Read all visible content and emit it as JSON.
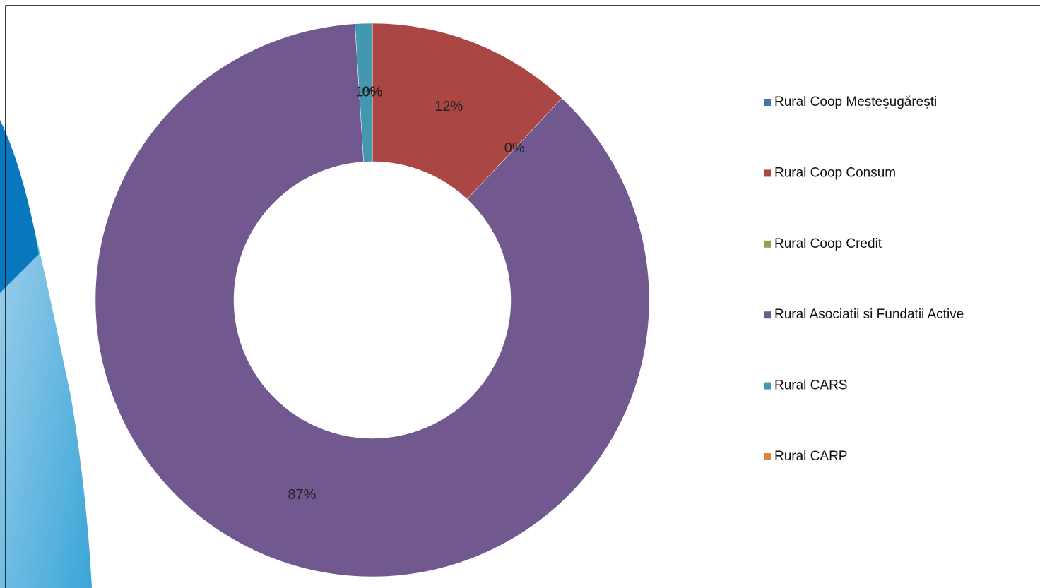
{
  "chart_data": {
    "type": "donut",
    "categories": [
      "Rural Coop Meșteșugărești",
      "Rural Coop Consum",
      "Rural Coop Credit",
      "Rural Asociatii si Fundatii Active",
      "Rural CARS",
      "Rural CARP"
    ],
    "values": [
      0,
      12,
      0,
      87,
      1,
      0
    ],
    "value_labels": [
      "0%",
      "12%",
      "0%",
      "87%",
      "1%",
      "0%"
    ],
    "colors": [
      "#4572a7",
      "#aa4643",
      "#89a54e",
      "#71588f",
      "#4198af",
      "#db843d"
    ],
    "legend": "right"
  }
}
